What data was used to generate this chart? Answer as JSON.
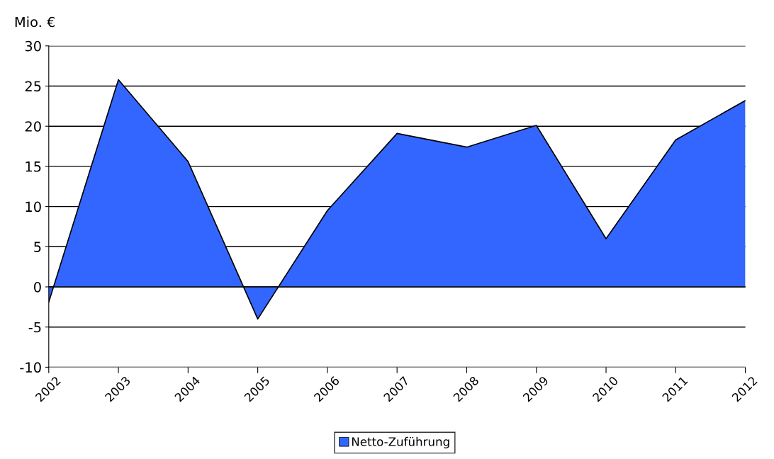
{
  "chart_data": {
    "type": "area",
    "ylabel": "Mio. €",
    "categories": [
      "2002",
      "2003",
      "2004",
      "2005",
      "2006",
      "2007",
      "2008",
      "2009",
      "2010",
      "2011",
      "2012"
    ],
    "series": [
      {
        "name": "Netto-Zuführung",
        "color": "#3366ff",
        "values": [
          -1.9,
          25.8,
          15.6,
          -4.0,
          9.5,
          19.1,
          17.4,
          20.1,
          6.0,
          18.3,
          23.2
        ]
      }
    ],
    "ylim": [
      -10,
      30
    ],
    "yticks": [
      -10,
      -5,
      0,
      5,
      10,
      15,
      20,
      25,
      30
    ],
    "grid": "y",
    "legend": "bottom"
  }
}
